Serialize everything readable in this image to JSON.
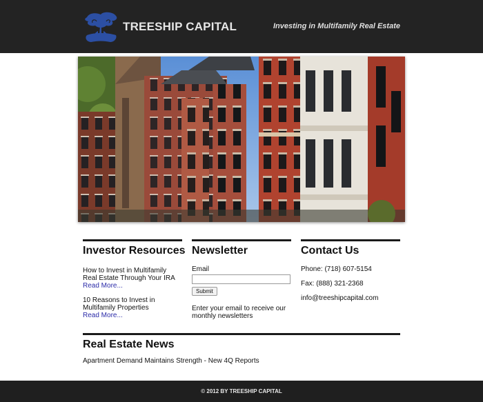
{
  "header": {
    "brand": "TREESHIP CAPITAL",
    "tagline": "Investing in Multifamily Real Estate",
    "logo_icon": "tree-icon",
    "logo_color": "#2c4fa3"
  },
  "hero": {
    "image": "row-of-brick-townhouses-photo"
  },
  "investor_resources": {
    "heading": "Investor Resources",
    "items": [
      {
        "title": "How to Invest in Multifamily Real Estate Through Your IRA",
        "link": "Read More..."
      },
      {
        "title": "10 Reasons to Invest in Multifamily Properties",
        "link": "Read More..."
      }
    ]
  },
  "newsletter": {
    "heading": "Newsletter",
    "email_label": "Email",
    "email_value": "",
    "submit_label": "Submit",
    "note": "Enter your email to receive our monthly newsletters"
  },
  "contact": {
    "heading": "Contact Us",
    "phone": "Phone: (718) 607-5154",
    "fax": "Fax: (888) 321-2368",
    "email": "info@treeshipcapital.com"
  },
  "news": {
    "heading": "Real Estate News",
    "items": [
      "Apartment Demand Maintains Strength - New 4Q Reports"
    ]
  },
  "footer": {
    "text": "© 2012 BY TREESHIP CAPITAL"
  },
  "colors": {
    "header_bg": "#232323",
    "link": "#2a2aa8"
  }
}
